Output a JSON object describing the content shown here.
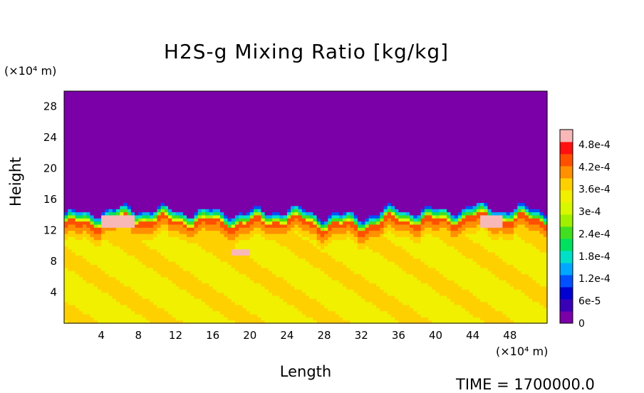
{
  "chart_data": {
    "type": "heatmap",
    "title": "H2S-g Mixing Ratio [kg/kg]",
    "xlabel": "Length",
    "ylabel": "Height",
    "x_unit": "(×10⁴ m)",
    "y_unit": "(×10⁴ m)",
    "xlim": [
      0,
      52
    ],
    "ylim": [
      0,
      30
    ],
    "x_ticks": [
      4,
      8,
      12,
      16,
      20,
      24,
      28,
      32,
      36,
      40,
      44,
      48
    ],
    "y_ticks": [
      4,
      8,
      12,
      16,
      20,
      24,
      28
    ],
    "colorbar": {
      "ticks": [
        "0",
        "6e-5",
        "1.2e-4",
        "1.8e-4",
        "2.4e-4",
        "3e-4",
        "3.6e-4",
        "4.2e-4",
        "4.8e-4"
      ],
      "tick_values": [
        0,
        6e-05,
        0.00012,
        0.00018,
        0.00024,
        0.0003,
        0.00036,
        0.00042,
        0.00048
      ],
      "range": [
        0,
        0.00052
      ],
      "colors": [
        "#7b00a8",
        "#3a00b8",
        "#0000d0",
        "#0050ff",
        "#00a8ff",
        "#00e0c8",
        "#00e060",
        "#40e020",
        "#a0f000",
        "#d8f800",
        "#f0f000",
        "#ffd000",
        "#ff9000",
        "#ff5000",
        "#ff1010",
        "#f8b8b8"
      ]
    },
    "field_summary": {
      "lower_layer_value": 0.00035,
      "upper_layer_value": 0,
      "interface_height_profile": [
        {
          "x": 0,
          "y": 14.0
        },
        {
          "x": 4,
          "y": 14.5
        },
        {
          "x": 8,
          "y": 14.8
        },
        {
          "x": 12,
          "y": 14.6
        },
        {
          "x": 16,
          "y": 14.4
        },
        {
          "x": 20,
          "y": 14.2
        },
        {
          "x": 24,
          "y": 14.8
        },
        {
          "x": 28,
          "y": 14.0
        },
        {
          "x": 32,
          "y": 13.8
        },
        {
          "x": 36,
          "y": 14.8
        },
        {
          "x": 40,
          "y": 14.5
        },
        {
          "x": 44,
          "y": 15.0
        },
        {
          "x": 48,
          "y": 14.8
        },
        {
          "x": 52,
          "y": 14.5
        }
      ],
      "max_value_zones": [
        {
          "x_range": [
            4,
            7.5
          ],
          "y_range": [
            12.5,
            13.8
          ]
        },
        {
          "x_range": [
            45,
            47
          ],
          "y_range": [
            12.5,
            14.0
          ]
        },
        {
          "x_range": [
            18,
            20
          ],
          "y_range": [
            8.8,
            9.6
          ]
        }
      ]
    }
  },
  "footer": {
    "time_label": "TIME = 1700000.0"
  }
}
